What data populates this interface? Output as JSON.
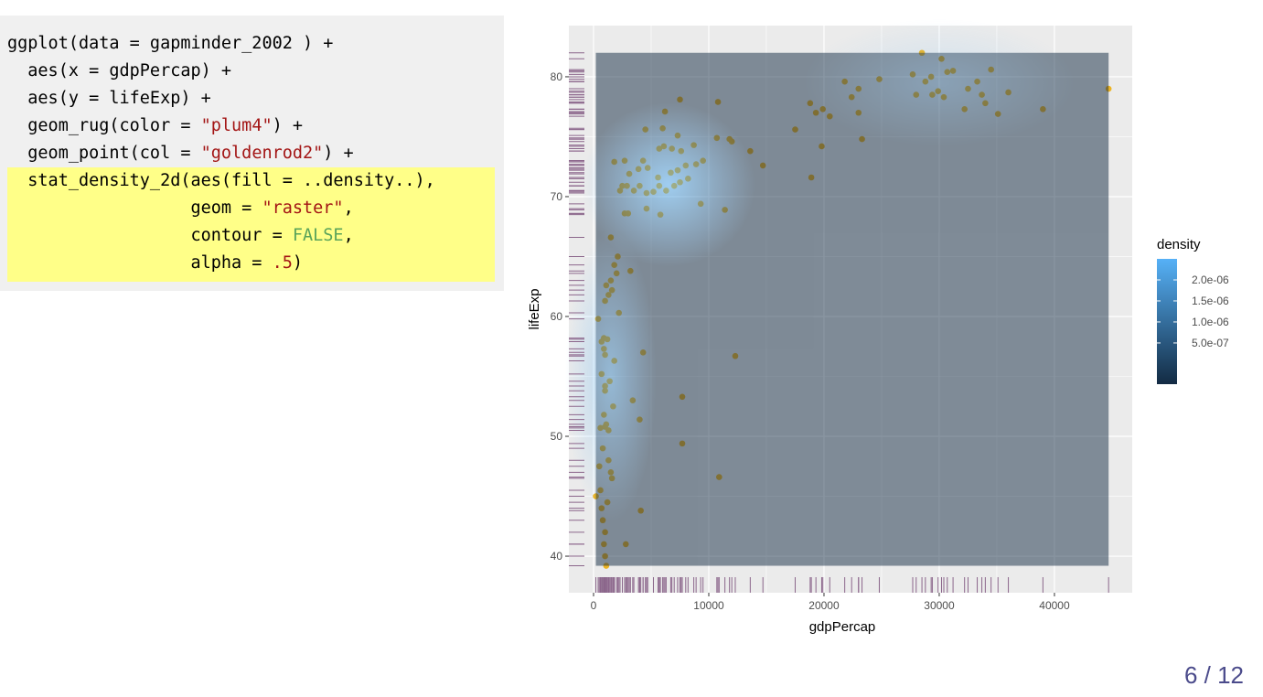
{
  "code": [
    [
      "ggplot(data = gapminder_2002 ) +"
    ],
    [
      "  aes(x = gdpPercap) +"
    ],
    [
      "  aes(y = lifeExp) +"
    ],
    [
      "  geom_rug(color = ",
      "\"plum4\"",
      ") +"
    ],
    [
      "  geom_point(col = ",
      "\"goldenrod2\"",
      ") +"
    ],
    [
      "  stat_density_2d(aes(fill = ..density..),"
    ],
    [
      "                  geom = ",
      "\"raster\"",
      ","
    ],
    [
      "                  contour = ",
      "FALSE",
      ","
    ],
    [
      "                  alpha = ",
      ".5",
      ")"
    ]
  ],
  "page_number": "6 / 12",
  "chart_data": {
    "type": "scatter",
    "xlabel": "gdpPercap",
    "ylabel": "lifeExp",
    "color": "#eeb422",
    "rug_color": "#8b668b",
    "xlim": [
      -2143,
      46750
    ],
    "ylim": [
      36.95,
      84.27
    ],
    "xticks": [
      0,
      10000,
      20000,
      30000,
      40000
    ],
    "yticks": [
      40,
      50,
      60,
      70,
      80
    ],
    "legend": {
      "title": "density",
      "low": "#132B43",
      "high": "#56B1F7",
      "lim": [
        -4.8e-07,
        2.5e-06
      ],
      "ticks": [
        {
          "value": 5e-07,
          "label": "5.0e-07"
        },
        {
          "value": 1e-06,
          "label": "1.0e-06"
        },
        {
          "value": 1.5e-06,
          "label": "1.5e-06"
        },
        {
          "value": 2e-06,
          "label": "2.0e-06"
        }
      ]
    },
    "x": [
      200,
      600,
      700,
      800,
      1000,
      900,
      1000,
      1100,
      2800,
      4100,
      1200,
      1600,
      1500,
      500,
      1300,
      800,
      600,
      1000,
      1100,
      900,
      1300,
      4000,
      1700,
      3400,
      7700,
      7700,
      1000,
      1400,
      700,
      1000,
      1800,
      1000,
      900,
      4300,
      700,
      1200,
      900,
      400,
      12300,
      10900,
      2200,
      1000,
      1300,
      1600,
      1100,
      1500,
      2000,
      3200,
      1800,
      2100,
      1500,
      3000,
      2700,
      5800,
      4600,
      9300,
      11400,
      2300,
      2500,
      2900,
      3500,
      4000,
      4600,
      5200,
      5700,
      6300,
      7000,
      7500,
      8200,
      3100,
      3900,
      4700,
      5600,
      6700,
      7300,
      8000,
      8900,
      9500,
      2700,
      1800,
      4300,
      5700,
      6100,
      6800,
      7600,
      8700,
      10700,
      11800,
      12000,
      13600,
      14700,
      4500,
      6000,
      7300,
      6200,
      7500,
      10800,
      17500,
      18800,
      19300,
      19900,
      20500,
      19800,
      18900,
      23300,
      21800,
      22400,
      23000,
      23000,
      24800,
      27700,
      28000,
      28500,
      28800,
      29300,
      29400,
      29900,
      30200,
      30400,
      30700,
      31200,
      32200,
      32500,
      33300,
      33700,
      34000,
      34500,
      35100,
      36000,
      39000,
      44700
    ],
    "y": [
      45,
      45.5,
      44,
      43,
      42,
      41,
      40,
      39.2,
      41,
      43.8,
      44.5,
      46.5,
      47,
      47.5,
      48,
      49,
      50.7,
      50.8,
      51,
      51.8,
      50.5,
      51.4,
      52.5,
      53,
      53.3,
      49.4,
      53.8,
      54.6,
      55.2,
      54.2,
      56.3,
      56.8,
      57.3,
      57,
      57.9,
      58.1,
      58.2,
      59.8,
      56.7,
      46.6,
      60.3,
      61.3,
      61.8,
      62.2,
      62.6,
      63,
      63.6,
      63.8,
      64.3,
      65,
      66.6,
      68.6,
      68.6,
      68.5,
      69,
      69.4,
      68.9,
      70.5,
      70.9,
      70.9,
      70.5,
      70.9,
      70.3,
      70.4,
      70.9,
      70.5,
      70.9,
      71.2,
      71.5,
      71.9,
      72.3,
      72.4,
      71.6,
      72,
      72.2,
      72.6,
      72.7,
      73,
      73,
      72.9,
      73,
      74,
      74.2,
      74,
      73.8,
      74.3,
      74.9,
      74.8,
      74.6,
      73.8,
      72.6,
      75.6,
      75.7,
      75.1,
      77.1,
      78.1,
      77.9,
      75.6,
      77.8,
      77,
      77.3,
      76.7,
      74.2,
      71.6,
      74.8,
      79.6,
      78.3,
      79,
      77,
      79.8,
      80.2,
      78.5,
      82,
      79.6,
      80,
      78.5,
      78.8,
      81.5,
      78.3,
      80.4,
      80.5,
      77.3,
      79,
      79.6,
      78.5,
      77.8,
      80.6,
      76.9,
      78.7,
      77.3,
      79
    ]
  }
}
